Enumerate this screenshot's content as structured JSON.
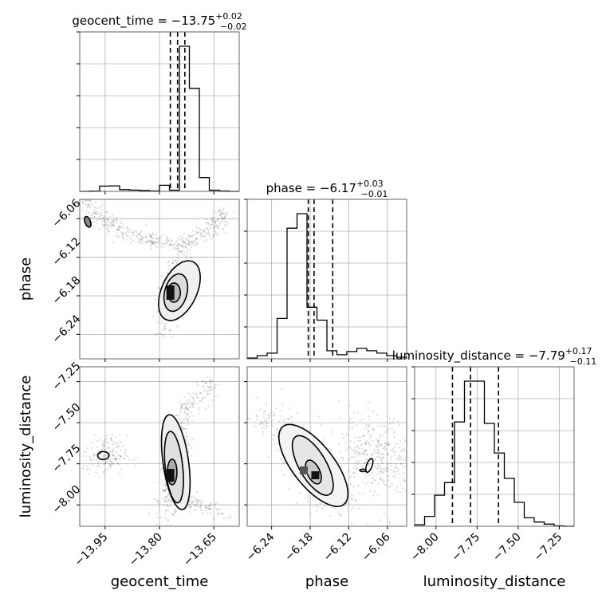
{
  "chart_data": {
    "type": "corner",
    "parameters": [
      "geocent_time",
      "phase",
      "luminosity_distance"
    ],
    "titles": [
      {
        "param": "geocent_time",
        "prefix": "geocent_time = ",
        "median": "−13.75",
        "plus": "+0.02",
        "minus": "−0.02"
      },
      {
        "param": "phase",
        "prefix": "phase = ",
        "median": "−6.17",
        "plus": "+0.03",
        "minus": "−0.01"
      },
      {
        "param": "luminosity_distance",
        "prefix": "luminosity_distance = ",
        "median": "−7.79",
        "plus": "+0.17",
        "minus": "−0.11"
      }
    ],
    "axis_labels": {
      "geocent_time": "geocent_time",
      "phase": "phase",
      "luminosity_distance": "luminosity_distance"
    },
    "ranges": {
      "geocent_time": [
        -14.02,
        -13.58
      ],
      "phase": [
        -6.278,
        -6.03
      ],
      "luminosity_distance": [
        -8.13,
        -7.16
      ]
    },
    "ticks": {
      "geocent_time": {
        "values": [
          -13.95,
          -13.8,
          -13.65
        ],
        "labels": [
          "−13.95",
          "−13.80",
          "−13.65"
        ]
      },
      "phase": {
        "values": [
          -6.24,
          -6.18,
          -6.12,
          -6.06
        ],
        "labels": [
          "−6.24",
          "−6.18",
          "−6.12",
          "−6.06"
        ]
      },
      "luminosity_distance": {
        "values": [
          -8.0,
          -7.75,
          -7.5,
          -7.25
        ],
        "labels": [
          "−8.00",
          "−7.75",
          "−7.50",
          "−7.25"
        ]
      }
    },
    "quantiles": {
      "geocent_time": [
        -13.77,
        -13.75,
        -13.73
      ],
      "phase": [
        -6.183,
        -6.174,
        -6.145
      ],
      "luminosity_distance": [
        -7.9,
        -7.79,
        -7.62
      ]
    },
    "histograms": {
      "geocent_time": {
        "edges_range": [
          -14.02,
          -13.58
        ],
        "counts": [
          0,
          0.2,
          3.6,
          3.8,
          1.2,
          0.9,
          0.6,
          0.3,
          4.2,
          0.8,
          100,
          71,
          9.5,
          0.8,
          0.3,
          0
        ]
      },
      "phase": {
        "edges_range": [
          -6.278,
          -6.03
        ],
        "counts": [
          0.5,
          2,
          3.5,
          25,
          81,
          90,
          32,
          24,
          5,
          2.5,
          4.5,
          6.5,
          5,
          3.5,
          2,
          1
        ]
      },
      "luminosity_distance": {
        "edges_range": [
          -8.13,
          -7.16
        ],
        "counts": [
          1,
          7,
          22,
          31,
          74,
          103,
          103,
          73,
          52,
          34,
          17,
          6,
          3,
          1.5,
          0.3,
          0
        ]
      }
    },
    "grid": true
  }
}
